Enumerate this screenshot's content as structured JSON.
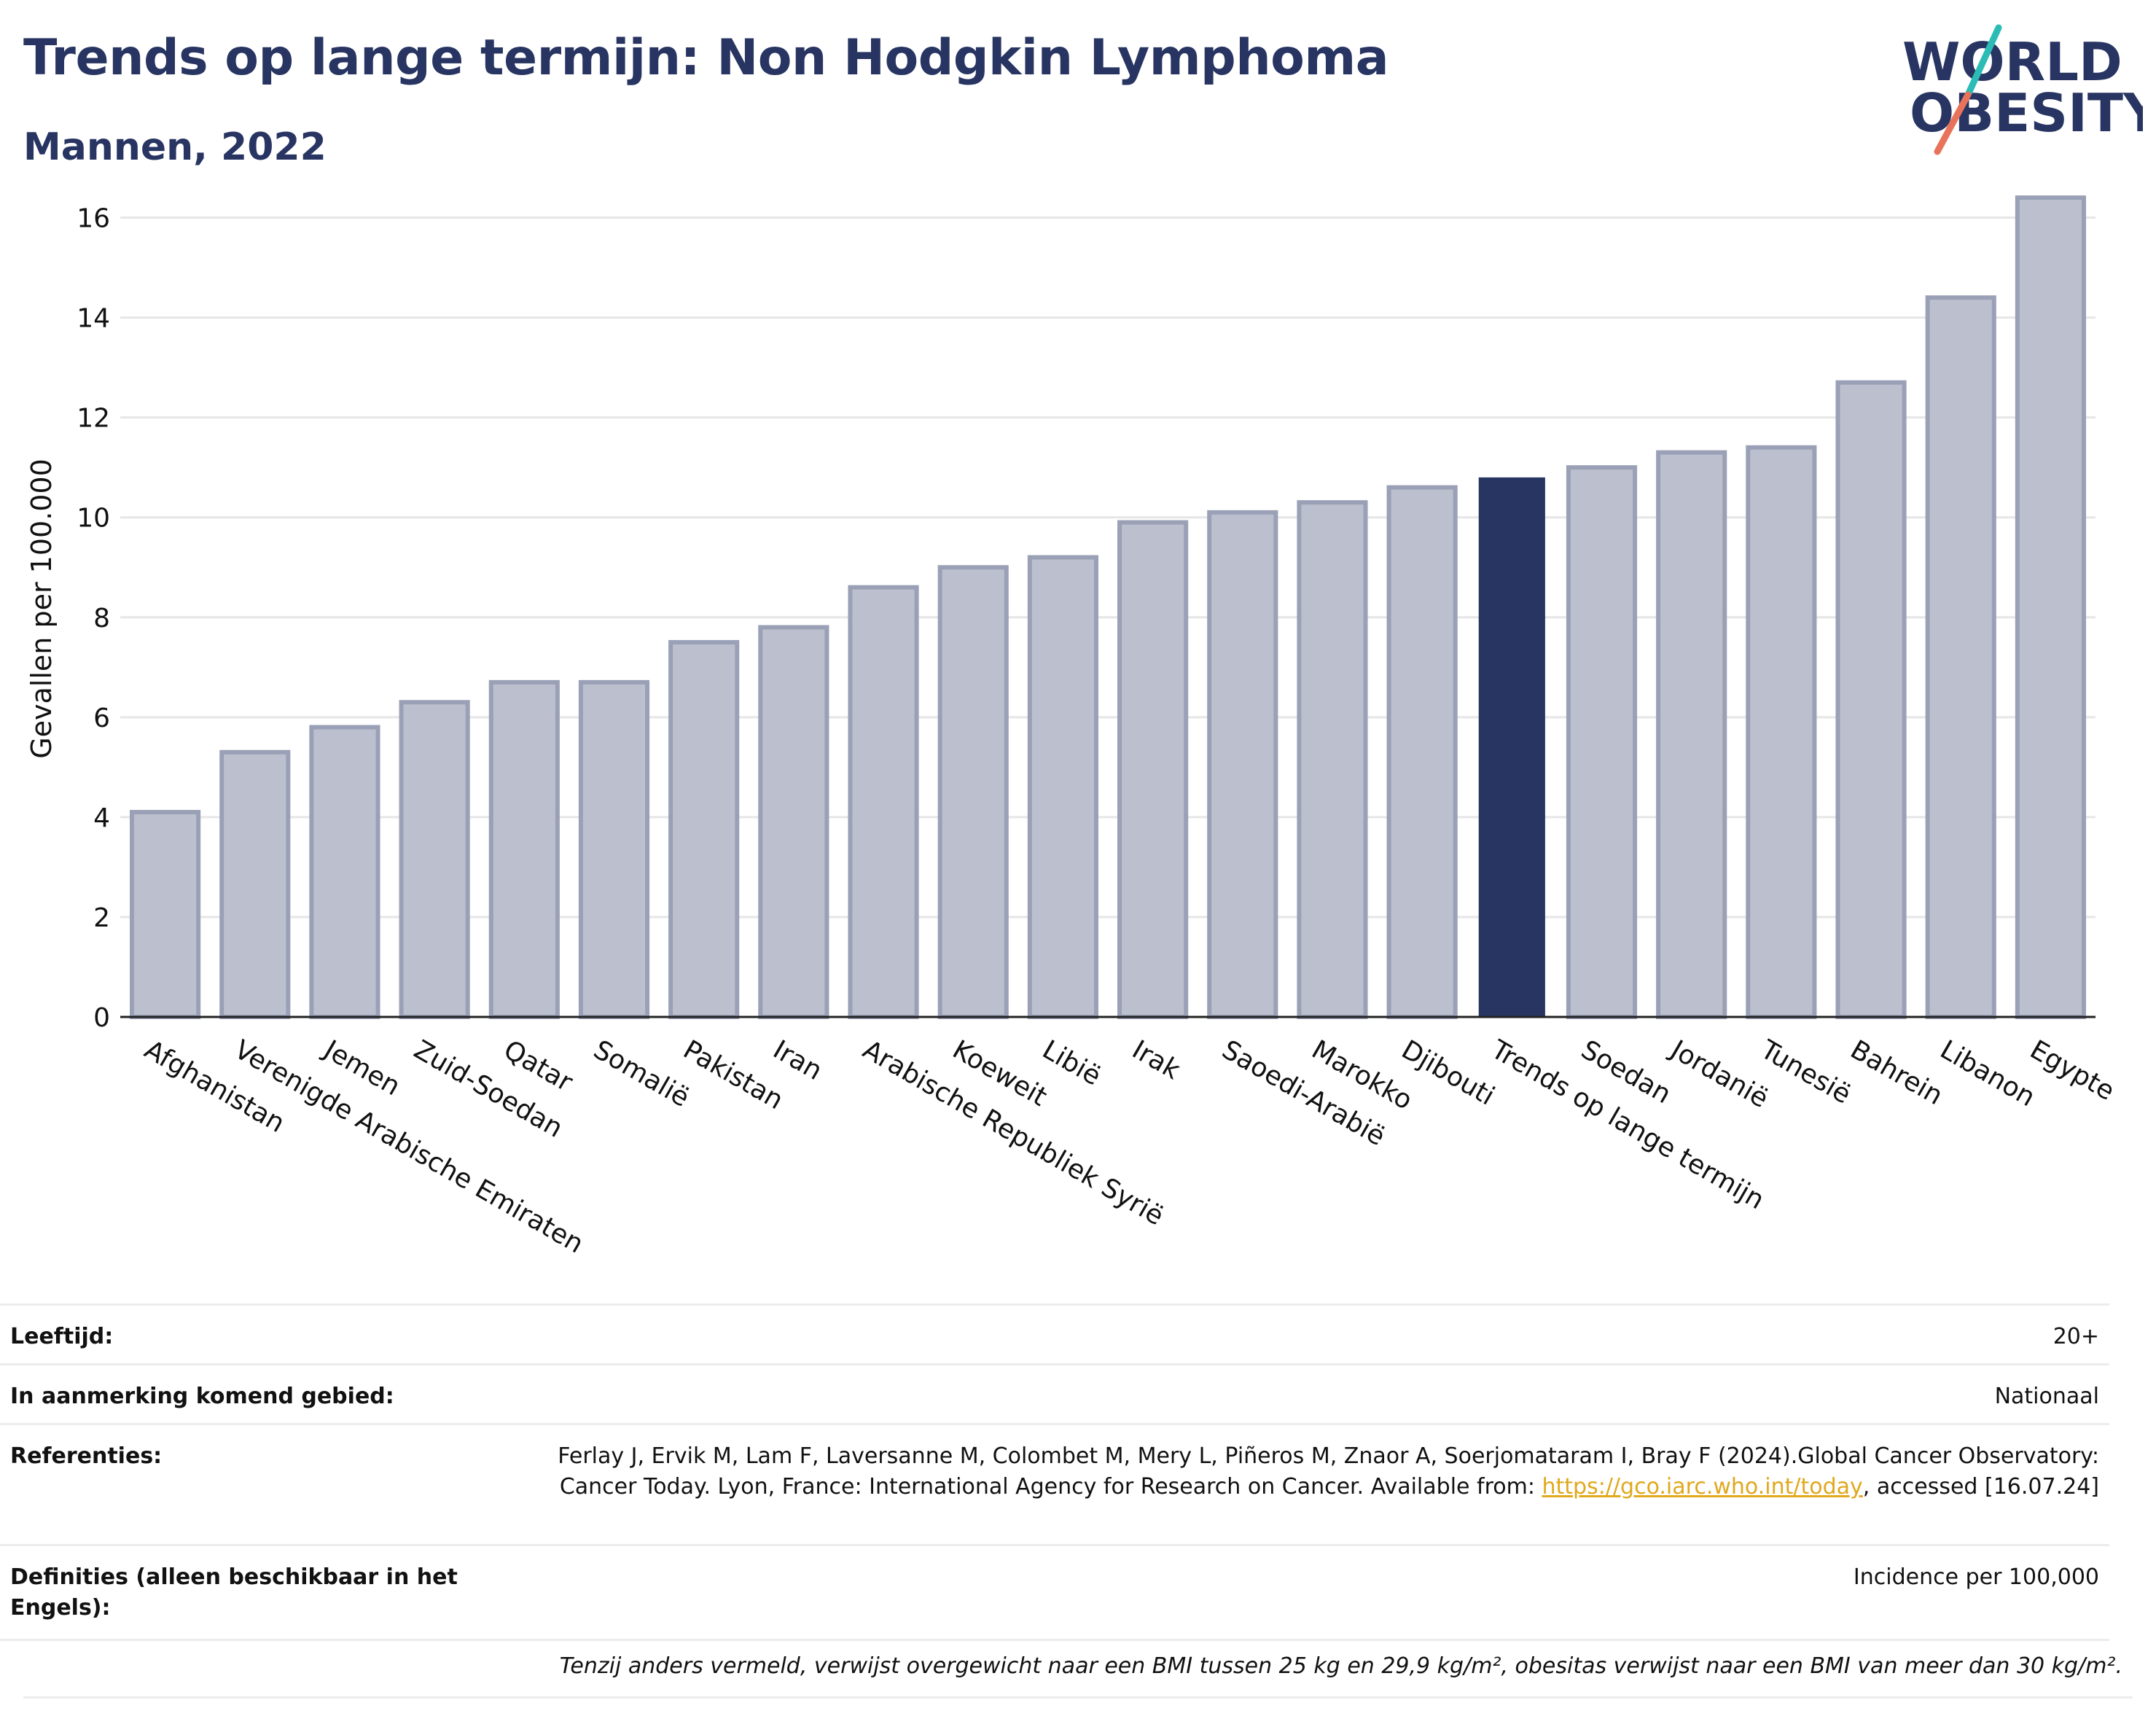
{
  "header": {
    "title": "Trends op lange termijn: Non Hodgkin Lymphoma",
    "subtitle": "Mannen, 2022"
  },
  "logo": {
    "line1": "WORLD",
    "line2": "OBESITY",
    "colors": [
      "#283562",
      "#2bbcb5",
      "#e8735a"
    ]
  },
  "chart_data": {
    "type": "bar",
    "ylabel": "Gevallen per 100.000",
    "xlabel": "",
    "ylim": [
      0,
      17
    ],
    "yticks": [
      0,
      2,
      4,
      6,
      8,
      10,
      12,
      14,
      16
    ],
    "grid": true,
    "categories": [
      "Afghanistan",
      "Verenigde Arabische Emiraten",
      "Jemen",
      "Zuid-Soedan",
      "Qatar",
      "Somalië",
      "Pakistan",
      "Iran",
      "Arabische Republiek Syrië",
      "Koeweit",
      "Libië",
      "Irak",
      "Saoedi-Arabië",
      "Marokko",
      "Djibouti",
      "Trends op lange termijn",
      "Soedan",
      "Jordanië",
      "Tunesië",
      "Bahrein",
      "Libanon",
      "Egypte"
    ],
    "values": [
      4.1,
      5.3,
      5.8,
      6.3,
      6.7,
      6.7,
      7.5,
      7.8,
      8.6,
      9.0,
      9.2,
      9.9,
      10.1,
      10.3,
      10.6,
      10.8,
      11.0,
      11.3,
      11.4,
      12.7,
      14.4,
      16.4
    ],
    "highlight": "Trends op lange termijn",
    "colors": {
      "bar": "#bcc0ce",
      "bar_edge": "#9aa0b6",
      "highlight": "#283562"
    }
  },
  "meta": [
    {
      "label": "Leeftijd:",
      "value": "20+"
    },
    {
      "label": "In aanmerking komend gebied:",
      "value": "Nationaal"
    },
    {
      "label": "Referenties:",
      "value": "Ferlay J, Ervik M, Lam F, Laversanne M, Colombet M, Mery L, Piñeros M, Znaor A, Soerjomataram I, Bray F (2024).Global Cancer Observatory: Cancer Today. Lyon, France: International Agency for Research on Cancer. Available from:",
      "link": "https://gco.iarc.who.int/today",
      "value_after": ", accessed [16.07.24]"
    },
    {
      "label": "Definities (alleen beschikbaar in het Engels):",
      "value": "Incidence per 100,000"
    }
  ],
  "footnote": "Tenzij anders vermeld, verwijst overgewicht naar een BMI tussen 25 kg en 29,9 kg/m², obesitas verwijst naar een BMI van meer dan 30 kg/m²."
}
